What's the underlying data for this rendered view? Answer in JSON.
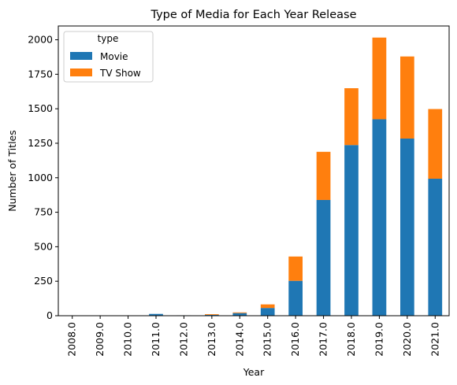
{
  "chart_data": {
    "type": "bar",
    "stacked": true,
    "title": "Type of Media for Each Year Release",
    "xlabel": "Year",
    "ylabel": "Number of Titles",
    "ylim": [
      0,
      2100
    ],
    "yticks": [
      0,
      250,
      500,
      750,
      1000,
      1250,
      1500,
      1750,
      2000
    ],
    "categories": [
      "2008.0",
      "2009.0",
      "2010.0",
      "2011.0",
      "2012.0",
      "2013.0",
      "2014.0",
      "2015.0",
      "2016.0",
      "2017.0",
      "2018.0",
      "2019.0",
      "2020.0",
      "2021.0"
    ],
    "legend_title": "type",
    "legend_position": "top-left",
    "series": [
      {
        "name": "Movie",
        "color": "#1f77b4",
        "values": [
          1,
          2,
          1,
          13,
          3,
          6,
          19,
          56,
          253,
          839,
          1237,
          1424,
          1284,
          993
        ]
      },
      {
        "name": "TV Show",
        "color": "#ff7f0e",
        "values": [
          0,
          0,
          0,
          0,
          0,
          5,
          5,
          26,
          176,
          349,
          412,
          592,
          595,
          505
        ]
      }
    ],
    "grid": false
  }
}
